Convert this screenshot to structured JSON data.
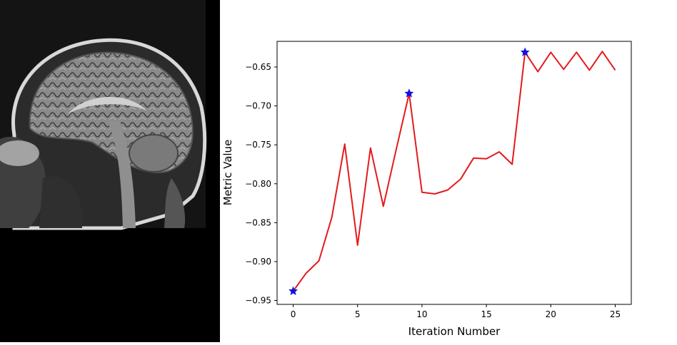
{
  "chart_data": {
    "type": "line",
    "title": "",
    "xlabel": "Iteration Number",
    "ylabel": "Metric Value",
    "xlim": [
      -1.25,
      26.25
    ],
    "ylim": [
      -0.955,
      -0.617
    ],
    "xticks": [
      0,
      5,
      10,
      15,
      20,
      25
    ],
    "xtick_labels": [
      "0",
      "5",
      "10",
      "15",
      "20",
      "25"
    ],
    "yticks": [
      -0.95,
      -0.9,
      -0.85,
      -0.8,
      -0.75,
      -0.7,
      -0.65
    ],
    "ytick_labels": [
      "−0.95",
      "−0.90",
      "−0.85",
      "−0.80",
      "−0.75",
      "−0.70",
      "−0.65"
    ],
    "grid": false,
    "series": [
      {
        "color": "#e41a1c",
        "x": [
          0,
          1,
          2,
          3,
          4,
          5,
          6,
          7,
          8,
          9,
          10,
          11,
          12,
          13,
          14,
          15,
          16,
          17,
          18,
          19,
          20,
          21,
          22,
          23,
          24,
          25
        ],
        "y": [
          -0.938,
          -0.915,
          -0.899,
          -0.843,
          -0.749,
          -0.879,
          -0.754,
          -0.829,
          -0.756,
          -0.684,
          -0.811,
          -0.813,
          -0.808,
          -0.794,
          -0.767,
          -0.768,
          -0.759,
          -0.775,
          -0.631,
          -0.656,
          -0.631,
          -0.653,
          -0.631,
          -0.654,
          -0.63,
          -0.654
        ]
      }
    ],
    "markers": {
      "color": "#1010e0",
      "shape": "star",
      "x": [
        0,
        9,
        18
      ],
      "y": [
        -0.938,
        -0.684,
        -0.631
      ]
    }
  },
  "image_panel": {
    "icon": "brain-mri-sagittal-image"
  }
}
